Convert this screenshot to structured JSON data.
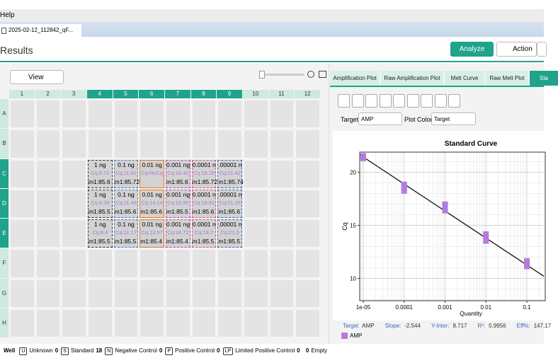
{
  "menu": {
    "help": "Help"
  },
  "file_tab": {
    "title": "2025-02-12_112842_qF..."
  },
  "header": {
    "title": "Results",
    "analyze": "Analyze",
    "action": "Action"
  },
  "toolbar": {
    "view": "View"
  },
  "plate": {
    "columns": [
      "1",
      "2",
      "3",
      "4",
      "5",
      "6",
      "7",
      "8",
      "9",
      "10",
      "11",
      "12"
    ],
    "rows": [
      {
        "label": "A",
        "wells": [
          null,
          null,
          null,
          null,
          null,
          null,
          null,
          null,
          null,
          null,
          null,
          null
        ]
      },
      {
        "label": "B",
        "wells": [
          null,
          null,
          null,
          null,
          null,
          null,
          null,
          null,
          null,
          null,
          null,
          null
        ]
      },
      {
        "label": "C",
        "wells": [
          null,
          null,
          null,
          {
            "name": "1 ng",
            "cq": "Cq:8.71",
            "tm": "m1:85.6",
            "border": "#333333",
            "dash": true
          },
          {
            "name": "0.1 ng",
            "cq": "Cq:11.61",
            "tm": "m1:85.72",
            "border": "#4a78c8",
            "dash": true
          },
          {
            "name": "0.01 ng",
            "cq": "Cq:NoCq",
            "border": "#e07b22",
            "dash": false
          },
          {
            "name": "0.001 ng",
            "cq": "Cq:16.42",
            "tm": "m1:85.6",
            "border": "#c040c0",
            "dash": true
          },
          {
            "name": "0.0001 n",
            "cq": "Cq:18.28",
            "tm": "m1:85.72",
            "border": "#e0507a",
            "dash": true
          },
          {
            "name": ".00001 n",
            "cq": "Cq:21.42",
            "tm": "m1:85.74",
            "border": "#3a6ab8",
            "dash": true
          },
          null,
          null,
          null
        ]
      },
      {
        "label": "D",
        "wells": [
          null,
          null,
          null,
          {
            "name": "1 ng",
            "cq": "Cq:8.36",
            "tm": "m1:85.5",
            "border": "#333333",
            "dash": true
          },
          {
            "name": "0.1 ng",
            "cq": "Cq:11.46",
            "tm": "m1:85.6",
            "border": "#4a78c8",
            "dash": true
          },
          {
            "name": "0.01 ng",
            "cq": "Cq:14.14",
            "tm": "m1:85.6",
            "border": "#e07b22",
            "dash": false
          },
          {
            "name": "0.001 ng",
            "cq": "Cq:16.95",
            "tm": "m1:85.5",
            "border": "#c040c0",
            "dash": true
          },
          {
            "name": "0.0001 n",
            "cq": "Cq:18.81",
            "tm": "m1:85.6",
            "border": "#e0507a",
            "dash": true
          },
          {
            "name": ".00001 n",
            "cq": "Cq:21.35",
            "tm": "m1:85.6",
            "border": "#3a6ab8",
            "dash": true
          },
          null,
          null,
          null
        ]
      },
      {
        "label": "E",
        "wells": [
          null,
          null,
          null,
          {
            "name": "1 ng",
            "cq": "Cq:8.4",
            "tm": "m1:85.5",
            "border": "#333333",
            "dash": true
          },
          {
            "name": "0.1 ng",
            "cq": "Cq:11.17",
            "tm": "m1:85.5",
            "border": "#4a78c8",
            "dash": true
          },
          {
            "name": "0.01 ng",
            "cq": "Cq:13.57",
            "tm": "m1:85.4",
            "border": "#e07b22",
            "dash": false
          },
          {
            "name": "0.001 ng",
            "cq": "Cq:16.72",
            "tm": "m1:85.4",
            "border": "#c040c0",
            "dash": true
          },
          {
            "name": "0.0001 n",
            "cq": "Cq:18.7",
            "tm": "m1:85.5",
            "border": "#e0507a",
            "dash": true
          },
          {
            "name": ".00001 n",
            "cq": "Cq:21.5",
            "tm": "m1:85.5",
            "border": "#3a6ab8",
            "dash": true
          },
          null,
          null,
          null
        ]
      },
      {
        "label": "F",
        "wells": [
          null,
          null,
          null,
          null,
          null,
          null,
          null,
          null,
          null,
          null,
          null,
          null
        ]
      },
      {
        "label": "G",
        "wells": [
          null,
          null,
          null,
          null,
          null,
          null,
          null,
          null,
          null,
          null,
          null,
          null
        ]
      },
      {
        "label": "H",
        "wells": [
          null,
          null,
          null,
          null,
          null,
          null,
          null,
          null,
          null,
          null,
          null,
          null
        ]
      }
    ]
  },
  "right_tabs": [
    "Amplification Plot",
    "Raw Amplification Plot",
    "Melt Curve",
    "Raw Melt Plot",
    "Sta"
  ],
  "target_row": {
    "target_label": "Target",
    "target": "AMP",
    "plot_color_label": "Plot Color:",
    "plot_color": "Target"
  },
  "chart_data": {
    "type": "scatter",
    "title": "Standard Curve",
    "x_label": "Quantity",
    "y_label": "Cq",
    "log_x": true,
    "grid": true,
    "xlim": [
      8.2e-06,
      0.26
    ],
    "ylim": [
      7.9,
      21.9
    ],
    "xticks": [
      {
        "value": 1e-05,
        "label": "1e-05"
      },
      0.0001,
      0.001,
      0.01,
      0.1
    ],
    "yticks": [
      10,
      15,
      20
    ],
    "series": [
      {
        "name": "AMP",
        "color": "#b57bdc",
        "x": [
          1e-05,
          1e-05,
          1e-05,
          0.0001,
          0.0001,
          0.0001,
          0.001,
          0.001,
          0.001,
          0.01,
          0.01,
          0.1,
          0.1,
          0.1
        ],
        "values": [
          21.42,
          21.35,
          21.5,
          18.28,
          18.81,
          18.7,
          16.42,
          16.95,
          16.72,
          14.14,
          13.57,
          11.61,
          11.46,
          11.17
        ]
      }
    ],
    "stats": {
      "target_label": "Target",
      "target": "AMP",
      "slope_label": "Slope:",
      "slope": -2.544,
      "intercept_label": "Y-Inter:",
      "intercept": 8.717,
      "r2_label": "R²:",
      "r2": 0.9956,
      "eff_label": "Eff%:",
      "efficiency": 147.17
    }
  },
  "status": {
    "well": "Well",
    "items": [
      {
        "badge": "U",
        "label": "Unknown",
        "count": 0
      },
      {
        "badge": "S",
        "label": "Standard",
        "count": 18
      },
      {
        "badge": "N",
        "label": "Negative Control",
        "count": 0
      },
      {
        "badge": "P",
        "label": "Positive Control",
        "count": 0
      },
      {
        "badge": "LP",
        "label": "Limited Positive Control",
        "count": 0
      }
    ],
    "empty_count": 0,
    "empty_label": "Empty"
  }
}
